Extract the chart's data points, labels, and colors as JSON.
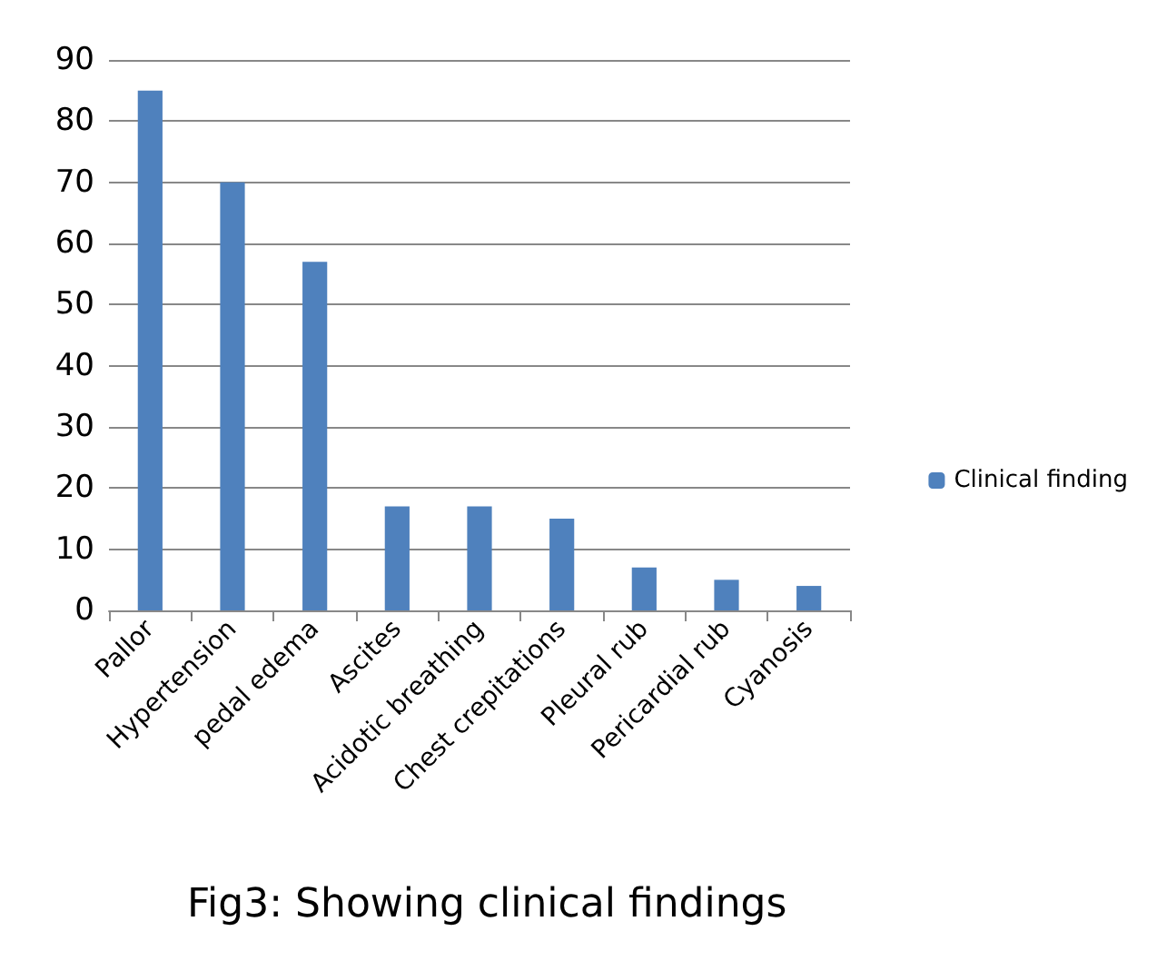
{
  "chart_data": {
    "type": "bar",
    "categories": [
      "Pallor",
      "Hypertension",
      "pedal edema",
      "Ascites",
      "Acidotic breathing",
      "Chest crepitations",
      "Pleural rub",
      "Pericardial rub",
      "Cyanosis"
    ],
    "series": [
      {
        "name": "Clinical finding",
        "color": "#4f81bd",
        "values": [
          85,
          70,
          57,
          17,
          17,
          15,
          7,
          5,
          4
        ]
      }
    ],
    "ylim": [
      0,
      90
    ],
    "yticks": [
      0,
      10,
      20,
      30,
      40,
      50,
      60,
      70,
      80,
      90
    ],
    "grid": "y",
    "legend": "right",
    "annotations": [
      "Fig3: Showing clinical findings"
    ]
  }
}
